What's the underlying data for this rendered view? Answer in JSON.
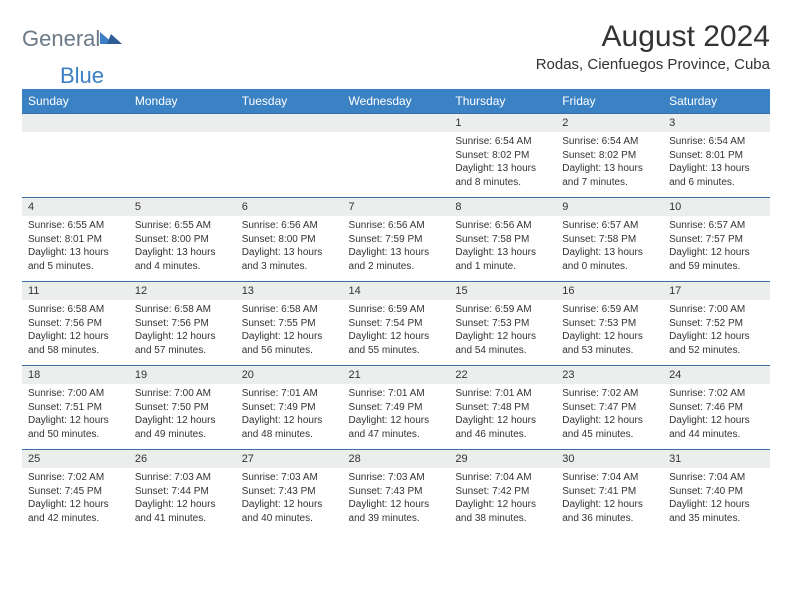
{
  "logo": {
    "general": "General",
    "blue": "Blue"
  },
  "title": "August 2024",
  "location": "Rodas, Cienfuegos Province, Cuba",
  "colors": {
    "header_bg": "#3b82c4",
    "header_text": "#ffffff",
    "daynum_bg": "#eceeee",
    "row_border": "#3b6fa0",
    "text": "#333333",
    "logo_general": "#6b7a88",
    "logo_blue": "#3b7fc4",
    "page_bg": "#ffffff"
  },
  "typography": {
    "title_fontsize": 30,
    "location_fontsize": 15,
    "dayhead_fontsize": 12,
    "daynum_fontsize": 11,
    "cell_fontsize": 10
  },
  "day_headers": [
    "Sunday",
    "Monday",
    "Tuesday",
    "Wednesday",
    "Thursday",
    "Friday",
    "Saturday"
  ],
  "weeks": [
    {
      "nums": [
        "",
        "",
        "",
        "",
        "1",
        "2",
        "3"
      ],
      "cells": [
        {
          "sunrise": "",
          "sunset": "",
          "daylight": ""
        },
        {
          "sunrise": "",
          "sunset": "",
          "daylight": ""
        },
        {
          "sunrise": "",
          "sunset": "",
          "daylight": ""
        },
        {
          "sunrise": "",
          "sunset": "",
          "daylight": ""
        },
        {
          "sunrise": "Sunrise: 6:54 AM",
          "sunset": "Sunset: 8:02 PM",
          "daylight": "Daylight: 13 hours and 8 minutes."
        },
        {
          "sunrise": "Sunrise: 6:54 AM",
          "sunset": "Sunset: 8:02 PM",
          "daylight": "Daylight: 13 hours and 7 minutes."
        },
        {
          "sunrise": "Sunrise: 6:54 AM",
          "sunset": "Sunset: 8:01 PM",
          "daylight": "Daylight: 13 hours and 6 minutes."
        }
      ]
    },
    {
      "nums": [
        "4",
        "5",
        "6",
        "7",
        "8",
        "9",
        "10"
      ],
      "cells": [
        {
          "sunrise": "Sunrise: 6:55 AM",
          "sunset": "Sunset: 8:01 PM",
          "daylight": "Daylight: 13 hours and 5 minutes."
        },
        {
          "sunrise": "Sunrise: 6:55 AM",
          "sunset": "Sunset: 8:00 PM",
          "daylight": "Daylight: 13 hours and 4 minutes."
        },
        {
          "sunrise": "Sunrise: 6:56 AM",
          "sunset": "Sunset: 8:00 PM",
          "daylight": "Daylight: 13 hours and 3 minutes."
        },
        {
          "sunrise": "Sunrise: 6:56 AM",
          "sunset": "Sunset: 7:59 PM",
          "daylight": "Daylight: 13 hours and 2 minutes."
        },
        {
          "sunrise": "Sunrise: 6:56 AM",
          "sunset": "Sunset: 7:58 PM",
          "daylight": "Daylight: 13 hours and 1 minute."
        },
        {
          "sunrise": "Sunrise: 6:57 AM",
          "sunset": "Sunset: 7:58 PM",
          "daylight": "Daylight: 13 hours and 0 minutes."
        },
        {
          "sunrise": "Sunrise: 6:57 AM",
          "sunset": "Sunset: 7:57 PM",
          "daylight": "Daylight: 12 hours and 59 minutes."
        }
      ]
    },
    {
      "nums": [
        "11",
        "12",
        "13",
        "14",
        "15",
        "16",
        "17"
      ],
      "cells": [
        {
          "sunrise": "Sunrise: 6:58 AM",
          "sunset": "Sunset: 7:56 PM",
          "daylight": "Daylight: 12 hours and 58 minutes."
        },
        {
          "sunrise": "Sunrise: 6:58 AM",
          "sunset": "Sunset: 7:56 PM",
          "daylight": "Daylight: 12 hours and 57 minutes."
        },
        {
          "sunrise": "Sunrise: 6:58 AM",
          "sunset": "Sunset: 7:55 PM",
          "daylight": "Daylight: 12 hours and 56 minutes."
        },
        {
          "sunrise": "Sunrise: 6:59 AM",
          "sunset": "Sunset: 7:54 PM",
          "daylight": "Daylight: 12 hours and 55 minutes."
        },
        {
          "sunrise": "Sunrise: 6:59 AM",
          "sunset": "Sunset: 7:53 PM",
          "daylight": "Daylight: 12 hours and 54 minutes."
        },
        {
          "sunrise": "Sunrise: 6:59 AM",
          "sunset": "Sunset: 7:53 PM",
          "daylight": "Daylight: 12 hours and 53 minutes."
        },
        {
          "sunrise": "Sunrise: 7:00 AM",
          "sunset": "Sunset: 7:52 PM",
          "daylight": "Daylight: 12 hours and 52 minutes."
        }
      ]
    },
    {
      "nums": [
        "18",
        "19",
        "20",
        "21",
        "22",
        "23",
        "24"
      ],
      "cells": [
        {
          "sunrise": "Sunrise: 7:00 AM",
          "sunset": "Sunset: 7:51 PM",
          "daylight": "Daylight: 12 hours and 50 minutes."
        },
        {
          "sunrise": "Sunrise: 7:00 AM",
          "sunset": "Sunset: 7:50 PM",
          "daylight": "Daylight: 12 hours and 49 minutes."
        },
        {
          "sunrise": "Sunrise: 7:01 AM",
          "sunset": "Sunset: 7:49 PM",
          "daylight": "Daylight: 12 hours and 48 minutes."
        },
        {
          "sunrise": "Sunrise: 7:01 AM",
          "sunset": "Sunset: 7:49 PM",
          "daylight": "Daylight: 12 hours and 47 minutes."
        },
        {
          "sunrise": "Sunrise: 7:01 AM",
          "sunset": "Sunset: 7:48 PM",
          "daylight": "Daylight: 12 hours and 46 minutes."
        },
        {
          "sunrise": "Sunrise: 7:02 AM",
          "sunset": "Sunset: 7:47 PM",
          "daylight": "Daylight: 12 hours and 45 minutes."
        },
        {
          "sunrise": "Sunrise: 7:02 AM",
          "sunset": "Sunset: 7:46 PM",
          "daylight": "Daylight: 12 hours and 44 minutes."
        }
      ]
    },
    {
      "nums": [
        "25",
        "26",
        "27",
        "28",
        "29",
        "30",
        "31"
      ],
      "cells": [
        {
          "sunrise": "Sunrise: 7:02 AM",
          "sunset": "Sunset: 7:45 PM",
          "daylight": "Daylight: 12 hours and 42 minutes."
        },
        {
          "sunrise": "Sunrise: 7:03 AM",
          "sunset": "Sunset: 7:44 PM",
          "daylight": "Daylight: 12 hours and 41 minutes."
        },
        {
          "sunrise": "Sunrise: 7:03 AM",
          "sunset": "Sunset: 7:43 PM",
          "daylight": "Daylight: 12 hours and 40 minutes."
        },
        {
          "sunrise": "Sunrise: 7:03 AM",
          "sunset": "Sunset: 7:43 PM",
          "daylight": "Daylight: 12 hours and 39 minutes."
        },
        {
          "sunrise": "Sunrise: 7:04 AM",
          "sunset": "Sunset: 7:42 PM",
          "daylight": "Daylight: 12 hours and 38 minutes."
        },
        {
          "sunrise": "Sunrise: 7:04 AM",
          "sunset": "Sunset: 7:41 PM",
          "daylight": "Daylight: 12 hours and 36 minutes."
        },
        {
          "sunrise": "Sunrise: 7:04 AM",
          "sunset": "Sunset: 7:40 PM",
          "daylight": "Daylight: 12 hours and 35 minutes."
        }
      ]
    }
  ]
}
